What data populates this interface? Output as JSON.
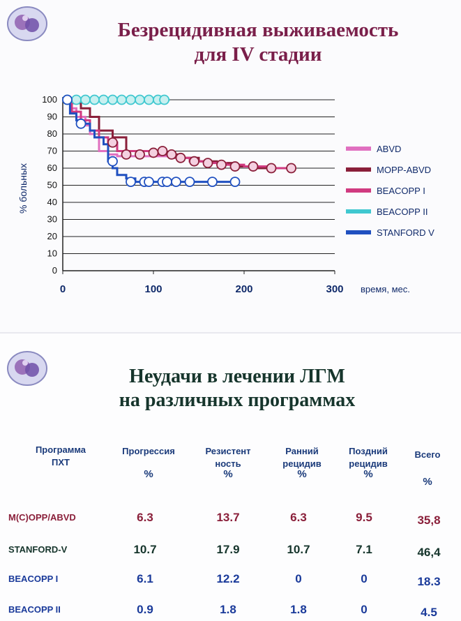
{
  "slide1": {
    "title": "Безрецидивная выживаемость\nдля IV стадии",
    "title_line1": "Безрецидивная выживаемость",
    "title_line2": "для IV стадии",
    "x_unit_label": "время, мес.",
    "y_axis_label": "% больных",
    "colors": {
      "title": "#7a1f4a",
      "axis_text": "#102a6a"
    }
  },
  "chart_data": {
    "type": "line",
    "title": "Безрецидивная выживаемость для IV стадии",
    "xlabel": "время, мес.",
    "ylabel": "% больных",
    "xlim": [
      0,
      300
    ],
    "ylim": [
      0,
      100
    ],
    "x_ticks": [
      0,
      100,
      200,
      300
    ],
    "y_ticks": [
      0,
      10,
      20,
      30,
      40,
      50,
      60,
      70,
      80,
      90,
      100
    ],
    "grid": true,
    "legend_position": "right",
    "series": [
      {
        "name": "ABVD",
        "color": "#e070c0",
        "x": [
          0,
          10,
          15,
          25,
          30,
          35,
          40,
          50,
          60,
          70,
          80,
          90,
          100,
          110,
          120
        ],
        "y": [
          100,
          95,
          90,
          85,
          80,
          78,
          70,
          68,
          67,
          67,
          67,
          67,
          67,
          67,
          67
        ]
      },
      {
        "name": "MOPP-ABVD",
        "color": "#8a1f3a",
        "x": [
          0,
          10,
          20,
          30,
          40,
          55,
          70,
          90,
          110,
          130,
          150,
          170,
          190,
          210,
          230,
          250
        ],
        "y": [
          100,
          98,
          95,
          90,
          82,
          78,
          70,
          70,
          68,
          66,
          64,
          63,
          61,
          60,
          60,
          60
        ]
      },
      {
        "name": "BEACOPP I",
        "color": "#d03a80",
        "x": [
          0,
          10,
          20,
          30,
          40,
          50,
          60,
          80,
          100,
          120,
          140,
          160,
          180,
          200,
          230,
          255
        ],
        "y": [
          100,
          93,
          88,
          82,
          78,
          75,
          70,
          70,
          68,
          66,
          64,
          63,
          62,
          61,
          60,
          60
        ]
      },
      {
        "name": "BEACOPP II",
        "color": "#40c8d0",
        "x": [
          0,
          10,
          20,
          30,
          40,
          50,
          60,
          70,
          80,
          90,
          100,
          110,
          118
        ],
        "y": [
          100,
          100,
          100,
          100,
          100,
          100,
          100,
          100,
          100,
          100,
          100,
          100,
          100
        ]
      },
      {
        "name": "STANFORD V",
        "color": "#2050c0",
        "x": [
          0,
          8,
          15,
          20,
          30,
          35,
          45,
          50,
          55,
          60,
          70,
          80,
          100,
          120,
          140,
          160,
          190
        ],
        "y": [
          100,
          92,
          88,
          86,
          82,
          78,
          74,
          64,
          60,
          56,
          54,
          52,
          52,
          52,
          52,
          52,
          52
        ]
      }
    ],
    "markers": [
      {
        "series": "BEACOPP II",
        "x": [
          5,
          15,
          25,
          35,
          45,
          55,
          65,
          75,
          85,
          95,
          105,
          112
        ],
        "y": [
          100,
          100,
          100,
          100,
          100,
          100,
          100,
          100,
          100,
          100,
          100,
          100
        ]
      },
      {
        "series": "MOPP-ABVD",
        "x": [
          55,
          70,
          85,
          100,
          110,
          120,
          130,
          145,
          160,
          175,
          190,
          210,
          230,
          252
        ],
        "y": [
          75,
          68,
          68,
          69,
          70,
          68,
          66,
          64,
          63,
          62,
          61,
          61,
          60,
          60
        ]
      },
      {
        "series": "STANFORD V",
        "x": [
          5,
          20,
          55,
          75,
          90,
          95,
          110,
          115,
          125,
          140,
          165,
          190
        ],
        "y": [
          100,
          86,
          64,
          52,
          52,
          52,
          52,
          52,
          52,
          52,
          52,
          52
        ]
      }
    ]
  },
  "slide2": {
    "title_line1": "Неудачи в лечении ЛГМ",
    "title_line2": "на различных программах",
    "headers": [
      {
        "line1": "Программа",
        "line2": "ПХТ",
        "line3": ""
      },
      {
        "line1": "Прогрессия",
        "line2": "",
        "line3": "%"
      },
      {
        "line1": "Резистент",
        "line2": "ность",
        "line3": "%"
      },
      {
        "line1": "Ранний",
        "line2": "рецидив",
        "line3": "%"
      },
      {
        "line1": "Поздний",
        "line2": "рецидив",
        "line3": "%"
      },
      {
        "line1": "Всего",
        "line2": "",
        "line3": "%"
      }
    ],
    "rows": [
      {
        "program": "M(C)OPP/ABVD",
        "color": "#8a1f3a",
        "values": [
          "6.3",
          "13.7",
          "6.3",
          "9.5",
          "35,8"
        ]
      },
      {
        "program": "STANFORD-V",
        "color": "#16352c",
        "values": [
          "10.7",
          "17.9",
          "10.7",
          "7.1",
          "46,4"
        ]
      },
      {
        "program": "BEACOPP I",
        "color": "#1a3a9a",
        "values": [
          "6.1",
          "12.2",
          "0",
          "0",
          "18.3"
        ]
      },
      {
        "program": "BEACOPP II",
        "color": "#1a3a9a",
        "values": [
          "0.9",
          "1.8",
          "1.8",
          "0",
          "4.5"
        ]
      }
    ]
  }
}
